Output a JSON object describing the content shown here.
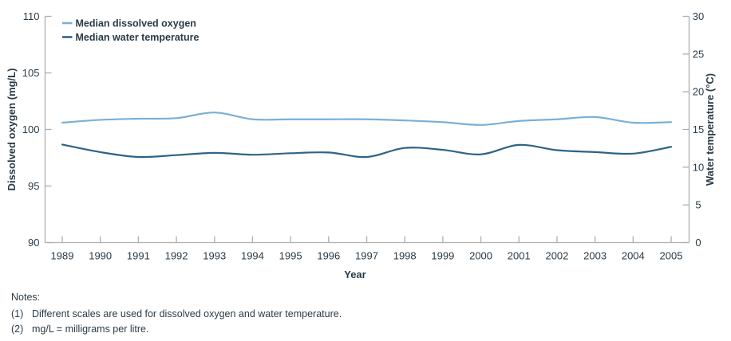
{
  "figure": {
    "notes": {
      "heading": "Notes:",
      "items": [
        {
          "num": "(1)",
          "text": "Different scales are used for dissolved oxygen and water temperature."
        },
        {
          "num": "(2)",
          "text": "mg/L = milligrams per litre."
        }
      ]
    }
  },
  "chart_data": {
    "type": "line",
    "x": [
      1989,
      1990,
      1991,
      1992,
      1993,
      1994,
      1995,
      1996,
      1997,
      1998,
      1999,
      2000,
      2001,
      2002,
      2003,
      2004,
      2005
    ],
    "xlabel": "Year",
    "grid": false,
    "legend_position": "top-left-inside",
    "left_axis": {
      "label": "Dissolved oxygen (mg/L)",
      "min": 90,
      "max": 110,
      "ticks": [
        90,
        95,
        100,
        105,
        110
      ]
    },
    "right_axis": {
      "label": "Water temperature (°C)",
      "min": 0,
      "max": 30,
      "ticks": [
        0,
        5,
        10,
        15,
        20,
        25,
        30
      ]
    },
    "series": [
      {
        "name": "Median dissolved oxygen",
        "axis": "left",
        "color": "#7ab0d6",
        "values": [
          100.6,
          100.85,
          100.95,
          101.0,
          101.5,
          100.9,
          100.9,
          100.9,
          100.9,
          100.8,
          100.65,
          100.4,
          100.75,
          100.9,
          101.1,
          100.6,
          100.65
        ]
      },
      {
        "name": "Median water temperature",
        "axis": "right",
        "color": "#2d6486",
        "values": [
          13.0,
          12.0,
          11.35,
          11.6,
          11.9,
          11.65,
          11.85,
          11.95,
          11.35,
          12.55,
          12.3,
          11.7,
          12.95,
          12.25,
          12.0,
          11.8,
          12.7
        ]
      }
    ],
    "style": {
      "axis_line_color": "#aeaeae",
      "text_color": "#2a3b47",
      "line_width": 2.2
    }
  }
}
